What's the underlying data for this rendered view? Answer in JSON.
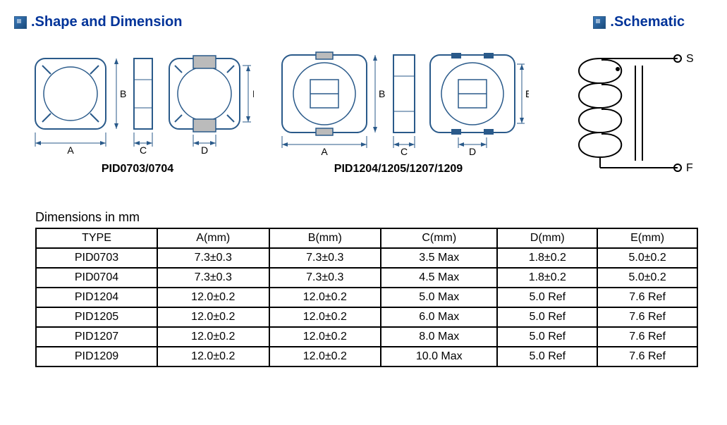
{
  "headings": {
    "shape": ".Shape and Dimension",
    "schematic": ".Schematic"
  },
  "captions": {
    "diagram1": "PID0703/0704",
    "diagram2": "PID1204/1205/1207/1209",
    "table": "Dimensions in mm"
  },
  "schematic_labels": {
    "start": "S",
    "finish": "F"
  },
  "dim_labels": {
    "A": "A",
    "B": "B",
    "C": "C",
    "D": "D",
    "E": "E"
  },
  "table": {
    "columns": [
      "TYPE",
      "A(mm)",
      "B(mm)",
      "C(mm)",
      "D(mm)",
      "E(mm)"
    ],
    "rows": [
      [
        "PID0703",
        "7.3±0.3",
        "7.3±0.3",
        "3.5 Max",
        "1.8±0.2",
        "5.0±0.2"
      ],
      [
        "PID0704",
        "7.3±0.3",
        "7.3±0.3",
        "4.5 Max",
        "1.8±0.2",
        "5.0±0.2"
      ],
      [
        "PID1204",
        "12.0±0.2",
        "12.0±0.2",
        "5.0 Max",
        "5.0 Ref",
        "7.6 Ref"
      ],
      [
        "PID1205",
        "12.0±0.2",
        "12.0±0.2",
        "6.0 Max",
        "5.0 Ref",
        "7.6 Ref"
      ],
      [
        "PID1207",
        "12.0±0.2",
        "12.0±0.2",
        "8.0 Max",
        "5.0 Ref",
        "7.6 Ref"
      ],
      [
        "PID1209",
        "12.0±0.2",
        "12.0±0.2",
        "10.0 Max",
        "5.0 Ref",
        "7.6 Ref"
      ]
    ]
  },
  "colors": {
    "heading": "#003399",
    "line": "#2a5a8a",
    "gray": "#999999"
  }
}
